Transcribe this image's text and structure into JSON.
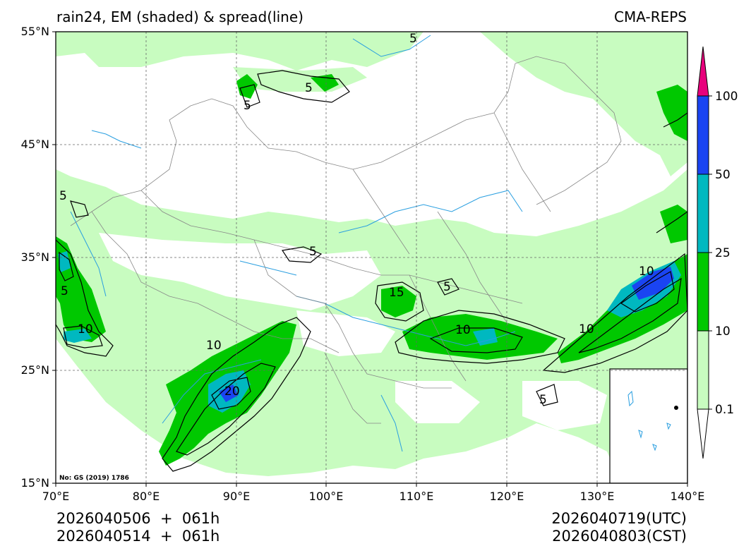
{
  "title": {
    "left": "rain24, EM (shaded) & spread(line)",
    "right": "CMA-REPS"
  },
  "axes": {
    "lat_labels": [
      "55°N",
      "45°N",
      "35°N",
      "25°N",
      "15°N"
    ],
    "lon_labels": [
      "70°E",
      "80°E",
      "90°E",
      "100°E",
      "110°E",
      "120°E",
      "130°E",
      "140°E"
    ],
    "lat_range": [
      15,
      55
    ],
    "lon_range": [
      70,
      140
    ]
  },
  "source_note": "No: GS (2019) 1786",
  "footer": {
    "init_utc": "2026040506  +  061h",
    "init_cst": "2026040514  +  061h",
    "valid_utc": "2026040719(UTC)",
    "valid_cst": "2026040803(CST)"
  },
  "colorbar": {
    "levels": [
      "0.1",
      "10",
      "25",
      "50",
      "100"
    ],
    "colors": [
      "#c8fcc0",
      "#00c800",
      "#00b8c0",
      "#1a44f2",
      "#e8007c"
    ],
    "under_color": "#ffffff"
  },
  "contour_labels": [
    "5",
    "10",
    "15",
    "20"
  ],
  "colors": {
    "land_light": "#c8fcc0",
    "green": "#00c800",
    "cyan": "#00b8c0",
    "blue": "#1a44f2",
    "river": "#2a9fe0",
    "border": "#888888"
  }
}
